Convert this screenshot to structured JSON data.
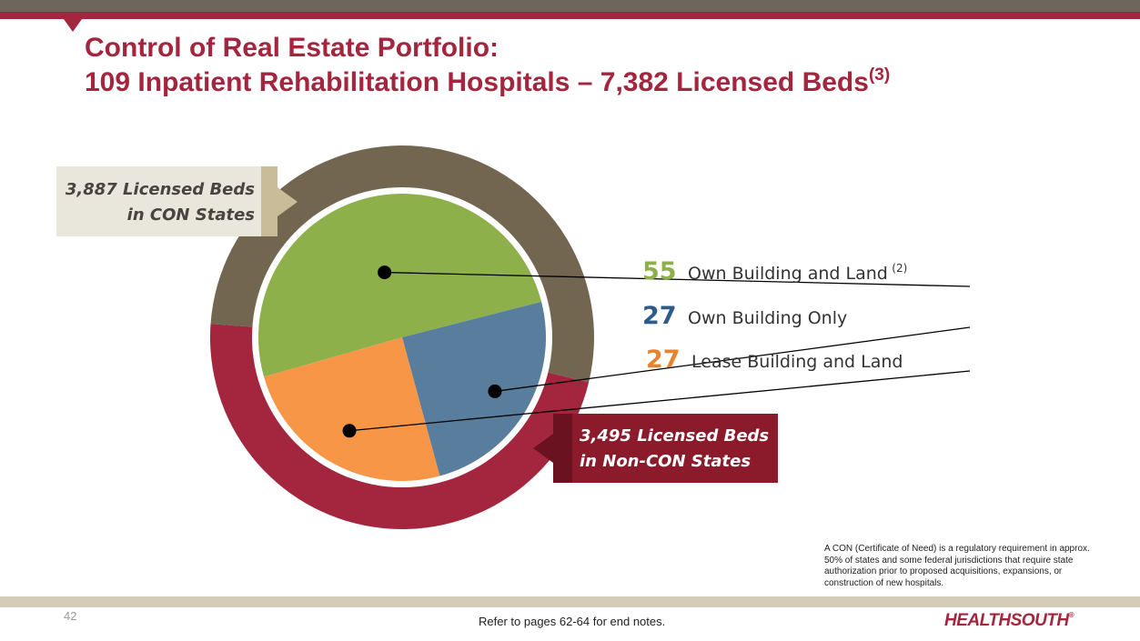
{
  "header": {
    "title_line1": "Control of Real Estate Portfolio:",
    "title_line2": "109 Inpatient Rehabilitation Hospitals – 7,382 Licensed Beds",
    "title_line2_sup": "(3)"
  },
  "chart_data": {
    "type": "pie",
    "title": "",
    "slices": [
      {
        "label": "Own Building and Land",
        "label_sup": "(2)",
        "value": 55,
        "display_value": "55",
        "color": "#8db04b"
      },
      {
        "label": "Own Building Only",
        "label_sup": "",
        "value": 27,
        "display_value": "27",
        "color": "#587d9d"
      },
      {
        "label": "Lease Building and Land",
        "label_sup": "",
        "value": 27,
        "display_value": "27",
        "color": "#f79646"
      }
    ],
    "outer_ring": [
      {
        "label_line1": "3,887 Licensed Beds",
        "label_line2": "in CON States",
        "value": 3887,
        "color": "#736651"
      },
      {
        "label_line1": "3,495 Licensed Beds",
        "label_line2": "in Non-CON States",
        "value": 3495,
        "color": "#a3263e"
      }
    ]
  },
  "footnote": "A CON (Certificate of Need) is a regulatory requirement in approx. 50% of states and some federal jurisdictions that require state authorization prior to proposed acquisitions, expansions, or construction of new hospitals.",
  "footer": {
    "page_number": "42",
    "endnotes": "Refer to pages 62-64 for end notes.",
    "logo": "HEALTHSOUTH",
    "logo_mark": "®"
  },
  "colors": {
    "brand_red": "#a3263e",
    "brand_taupe": "#6e655d",
    "beige": "#d3ccb6"
  }
}
